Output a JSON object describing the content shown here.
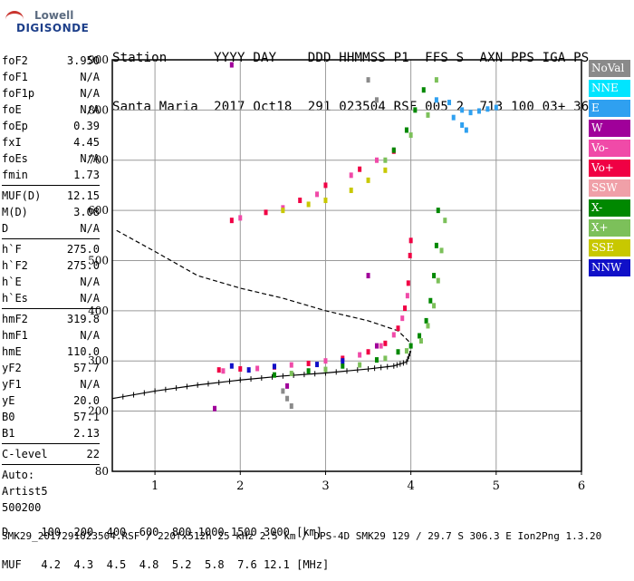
{
  "logo": {
    "brand": "Lowell",
    "product": "DIGISONDE"
  },
  "header": {
    "row1": "Station      YYYY DAY    DDD HHMMSS P1  FFS S  AXN PPS IGA PS",
    "row2": "Santa Maria  2017 Oct18  291 023504 RSF 005 2  713 100 03+ 36"
  },
  "params": {
    "group1": [
      {
        "label": "foF2",
        "value": "3.950"
      },
      {
        "label": "foF1",
        "value": "N/A"
      },
      {
        "label": "foF1p",
        "value": "N/A"
      },
      {
        "label": "foE",
        "value": "N/A"
      },
      {
        "label": "foEp",
        "value": "0.39"
      },
      {
        "label": "fxI",
        "value": "4.45"
      },
      {
        "label": "foEs",
        "value": "N/A"
      },
      {
        "label": "fmin",
        "value": "1.73"
      }
    ],
    "group2": [
      {
        "label": "MUF(D)",
        "value": "12.15"
      },
      {
        "label": "M(D)",
        "value": "3.08"
      },
      {
        "label": "D",
        "value": "N/A"
      }
    ],
    "group3": [
      {
        "label": "h`F",
        "value": "275.0"
      },
      {
        "label": "h`F2",
        "value": "275.0"
      },
      {
        "label": "h`E",
        "value": "N/A"
      },
      {
        "label": "h`Es",
        "value": "N/A"
      }
    ],
    "group4": [
      {
        "label": "hmF2",
        "value": "319.8"
      },
      {
        "label": "hmF1",
        "value": "N/A"
      },
      {
        "label": "hmE",
        "value": "110.0"
      },
      {
        "label": "yF2",
        "value": "57.7"
      },
      {
        "label": "yF1",
        "value": "N/A"
      },
      {
        "label": "yE",
        "value": "20.0"
      },
      {
        "label": "B0",
        "value": "57.1"
      },
      {
        "label": "B1",
        "value": "2.13"
      }
    ],
    "group5": [
      {
        "label": "C-level",
        "value": "22"
      }
    ],
    "auto": [
      "Auto:",
      "Artist5",
      "500200"
    ]
  },
  "legend": [
    {
      "label": "NoVal",
      "color": "#8a8a8a"
    },
    {
      "label": "NNE",
      "color": "#00e5ff"
    },
    {
      "label": "E",
      "color": "#2fa0f0"
    },
    {
      "label": "W",
      "color": "#a0009a"
    },
    {
      "label": "Vo-",
      "color": "#f04aa8"
    },
    {
      "label": "Vo+",
      "color": "#f00044"
    },
    {
      "label": "SSW",
      "color": "#f0a0a8"
    },
    {
      "label": "X-",
      "color": "#008800"
    },
    {
      "label": "X+",
      "color": "#7cc05a"
    },
    {
      "label": "SSE",
      "color": "#c8c800"
    },
    {
      "label": "NNW",
      "color": "#1010c8"
    }
  ],
  "bottom": {
    "row1": "D     100  200  400  600  800 1000 1500 3000 [km]",
    "row2": "MUF   4.2  4.3  4.5  4.8  5.2  5.8  7.6 12.1 [MHz]"
  },
  "footer": "SMK29_2017291023504.RSF / 220fx512h 25 kHz 2.5 km / DPS-4D SMK29 129 / 29.7 S 306.3 E Ion2Png 1.3.20",
  "chart_data": {
    "type": "scatter",
    "title": "",
    "xlabel": "",
    "ylabel": "",
    "xlim": [
      0.5,
      6
    ],
    "ylim": [
      80,
      900
    ],
    "x_ticks": [
      1,
      2,
      3,
      4,
      5,
      6
    ],
    "y_ticks": [
      80,
      200,
      300,
      400,
      500,
      600,
      700,
      800,
      900
    ],
    "grid": true,
    "series": [
      {
        "name": "Vo+",
        "color": "#f00044",
        "points": [
          [
            1.75,
            282
          ],
          [
            2.0,
            284
          ],
          [
            2.4,
            288
          ],
          [
            2.8,
            295
          ],
          [
            3.2,
            305
          ],
          [
            3.5,
            318
          ],
          [
            3.7,
            335
          ],
          [
            3.85,
            365
          ],
          [
            3.93,
            405
          ],
          [
            3.97,
            455
          ],
          [
            3.99,
            510
          ],
          [
            4.0,
            540
          ],
          [
            1.9,
            580
          ],
          [
            2.3,
            596
          ],
          [
            2.7,
            620
          ],
          [
            3.0,
            650
          ],
          [
            3.4,
            682
          ],
          [
            3.8,
            718
          ]
        ]
      },
      {
        "name": "Vo-",
        "color": "#f04aa8",
        "points": [
          [
            1.8,
            280
          ],
          [
            2.2,
            285
          ],
          [
            2.6,
            292
          ],
          [
            3.0,
            300
          ],
          [
            3.4,
            312
          ],
          [
            3.65,
            330
          ],
          [
            3.8,
            352
          ],
          [
            3.9,
            385
          ],
          [
            3.96,
            430
          ],
          [
            2.0,
            585
          ],
          [
            2.5,
            605
          ],
          [
            2.9,
            632
          ],
          [
            3.3,
            670
          ],
          [
            3.6,
            700
          ]
        ]
      },
      {
        "name": "X-",
        "color": "#008800",
        "points": [
          [
            2.4,
            272
          ],
          [
            2.8,
            280
          ],
          [
            3.2,
            290
          ],
          [
            3.6,
            302
          ],
          [
            3.85,
            318
          ],
          [
            4.0,
            330
          ],
          [
            4.1,
            350
          ],
          [
            4.18,
            380
          ],
          [
            4.23,
            420
          ],
          [
            4.27,
            470
          ],
          [
            4.3,
            530
          ],
          [
            4.32,
            600
          ],
          [
            3.8,
            720
          ],
          [
            3.95,
            760
          ],
          [
            4.05,
            800
          ],
          [
            4.15,
            840
          ]
        ]
      },
      {
        "name": "X+",
        "color": "#7cc05a",
        "points": [
          [
            2.6,
            275
          ],
          [
            3.0,
            283
          ],
          [
            3.4,
            292
          ],
          [
            3.7,
            305
          ],
          [
            3.95,
            320
          ],
          [
            4.12,
            340
          ],
          [
            4.2,
            370
          ],
          [
            4.27,
            410
          ],
          [
            4.32,
            460
          ],
          [
            4.36,
            520
          ],
          [
            4.4,
            580
          ],
          [
            3.7,
            700
          ],
          [
            4.0,
            750
          ],
          [
            4.2,
            790
          ],
          [
            4.3,
            860
          ]
        ]
      },
      {
        "name": "SSE",
        "color": "#c8c800",
        "points": [
          [
            2.5,
            600
          ],
          [
            2.8,
            612
          ],
          [
            3.0,
            620
          ],
          [
            3.3,
            640
          ],
          [
            3.5,
            660
          ],
          [
            3.7,
            680
          ]
        ]
      },
      {
        "name": "E",
        "color": "#2fa0f0",
        "points": [
          [
            4.3,
            820
          ],
          [
            4.45,
            815
          ],
          [
            4.6,
            800
          ],
          [
            4.7,
            795
          ],
          [
            4.8,
            798
          ],
          [
            4.9,
            802
          ],
          [
            5.0,
            805
          ],
          [
            4.5,
            785
          ],
          [
            4.6,
            770
          ],
          [
            4.65,
            760
          ]
        ]
      },
      {
        "name": "W",
        "color": "#a0009a",
        "points": [
          [
            1.7,
            205
          ],
          [
            2.55,
            250
          ],
          [
            3.5,
            470
          ],
          [
            3.6,
            330
          ],
          [
            1.9,
            890
          ]
        ]
      },
      {
        "name": "NNW",
        "color": "#1010c8",
        "points": [
          [
            1.9,
            290
          ],
          [
            2.1,
            282
          ],
          [
            2.4,
            289
          ],
          [
            2.9,
            293
          ],
          [
            3.2,
            300
          ]
        ]
      },
      {
        "name": "NoVal",
        "color": "#8a8a8a",
        "points": [
          [
            2.5,
            240
          ],
          [
            2.55,
            225
          ],
          [
            2.6,
            210
          ],
          [
            3.5,
            860
          ],
          [
            3.6,
            820
          ]
        ]
      }
    ],
    "trace_lower": {
      "x": [
        0.5,
        1.0,
        1.5,
        2.0,
        2.5,
        3.0,
        3.5,
        3.8,
        3.95,
        4.0
      ],
      "y": [
        225,
        240,
        252,
        262,
        270,
        276,
        284,
        290,
        298,
        320
      ]
    },
    "trace_dashed": {
      "x": [
        0.55,
        1.0,
        1.5,
        2.0,
        2.5,
        3.0,
        3.5,
        3.85,
        4.0
      ],
      "y": [
        560,
        518,
        470,
        445,
        425,
        400,
        380,
        360,
        335
      ]
    }
  }
}
